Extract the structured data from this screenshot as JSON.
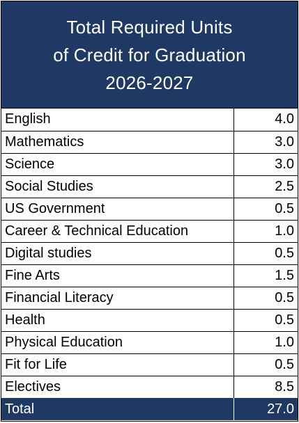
{
  "header": {
    "line1": "Total Required Units",
    "line2": "of Credit for Graduation",
    "line3": "2026-2027"
  },
  "rows": [
    {
      "subject": "English",
      "units": "4.0"
    },
    {
      "subject": "Mathematics",
      "units": "3.0"
    },
    {
      "subject": "Science",
      "units": "3.0"
    },
    {
      "subject": "Social Studies",
      "units": "2.5"
    },
    {
      "subject": "US Government",
      "units": "0.5"
    },
    {
      "subject": "Career & Technical Education",
      "units": "1.0"
    },
    {
      "subject": "Digital studies",
      "units": "0.5"
    },
    {
      "subject": "Fine Arts",
      "units": "1.5"
    },
    {
      "subject": "Financial Literacy",
      "units": "0.5"
    },
    {
      "subject": "Health",
      "units": "0.5"
    },
    {
      "subject": "Physical Education",
      "units": "1.0"
    },
    {
      "subject": "Fit for Life",
      "units": "0.5"
    },
    {
      "subject": "Electives",
      "units": "8.5"
    }
  ],
  "total": {
    "label": "Total",
    "units": "27.0"
  },
  "colors": {
    "header_bg": "#1f3864",
    "header_text": "#ffffff"
  }
}
